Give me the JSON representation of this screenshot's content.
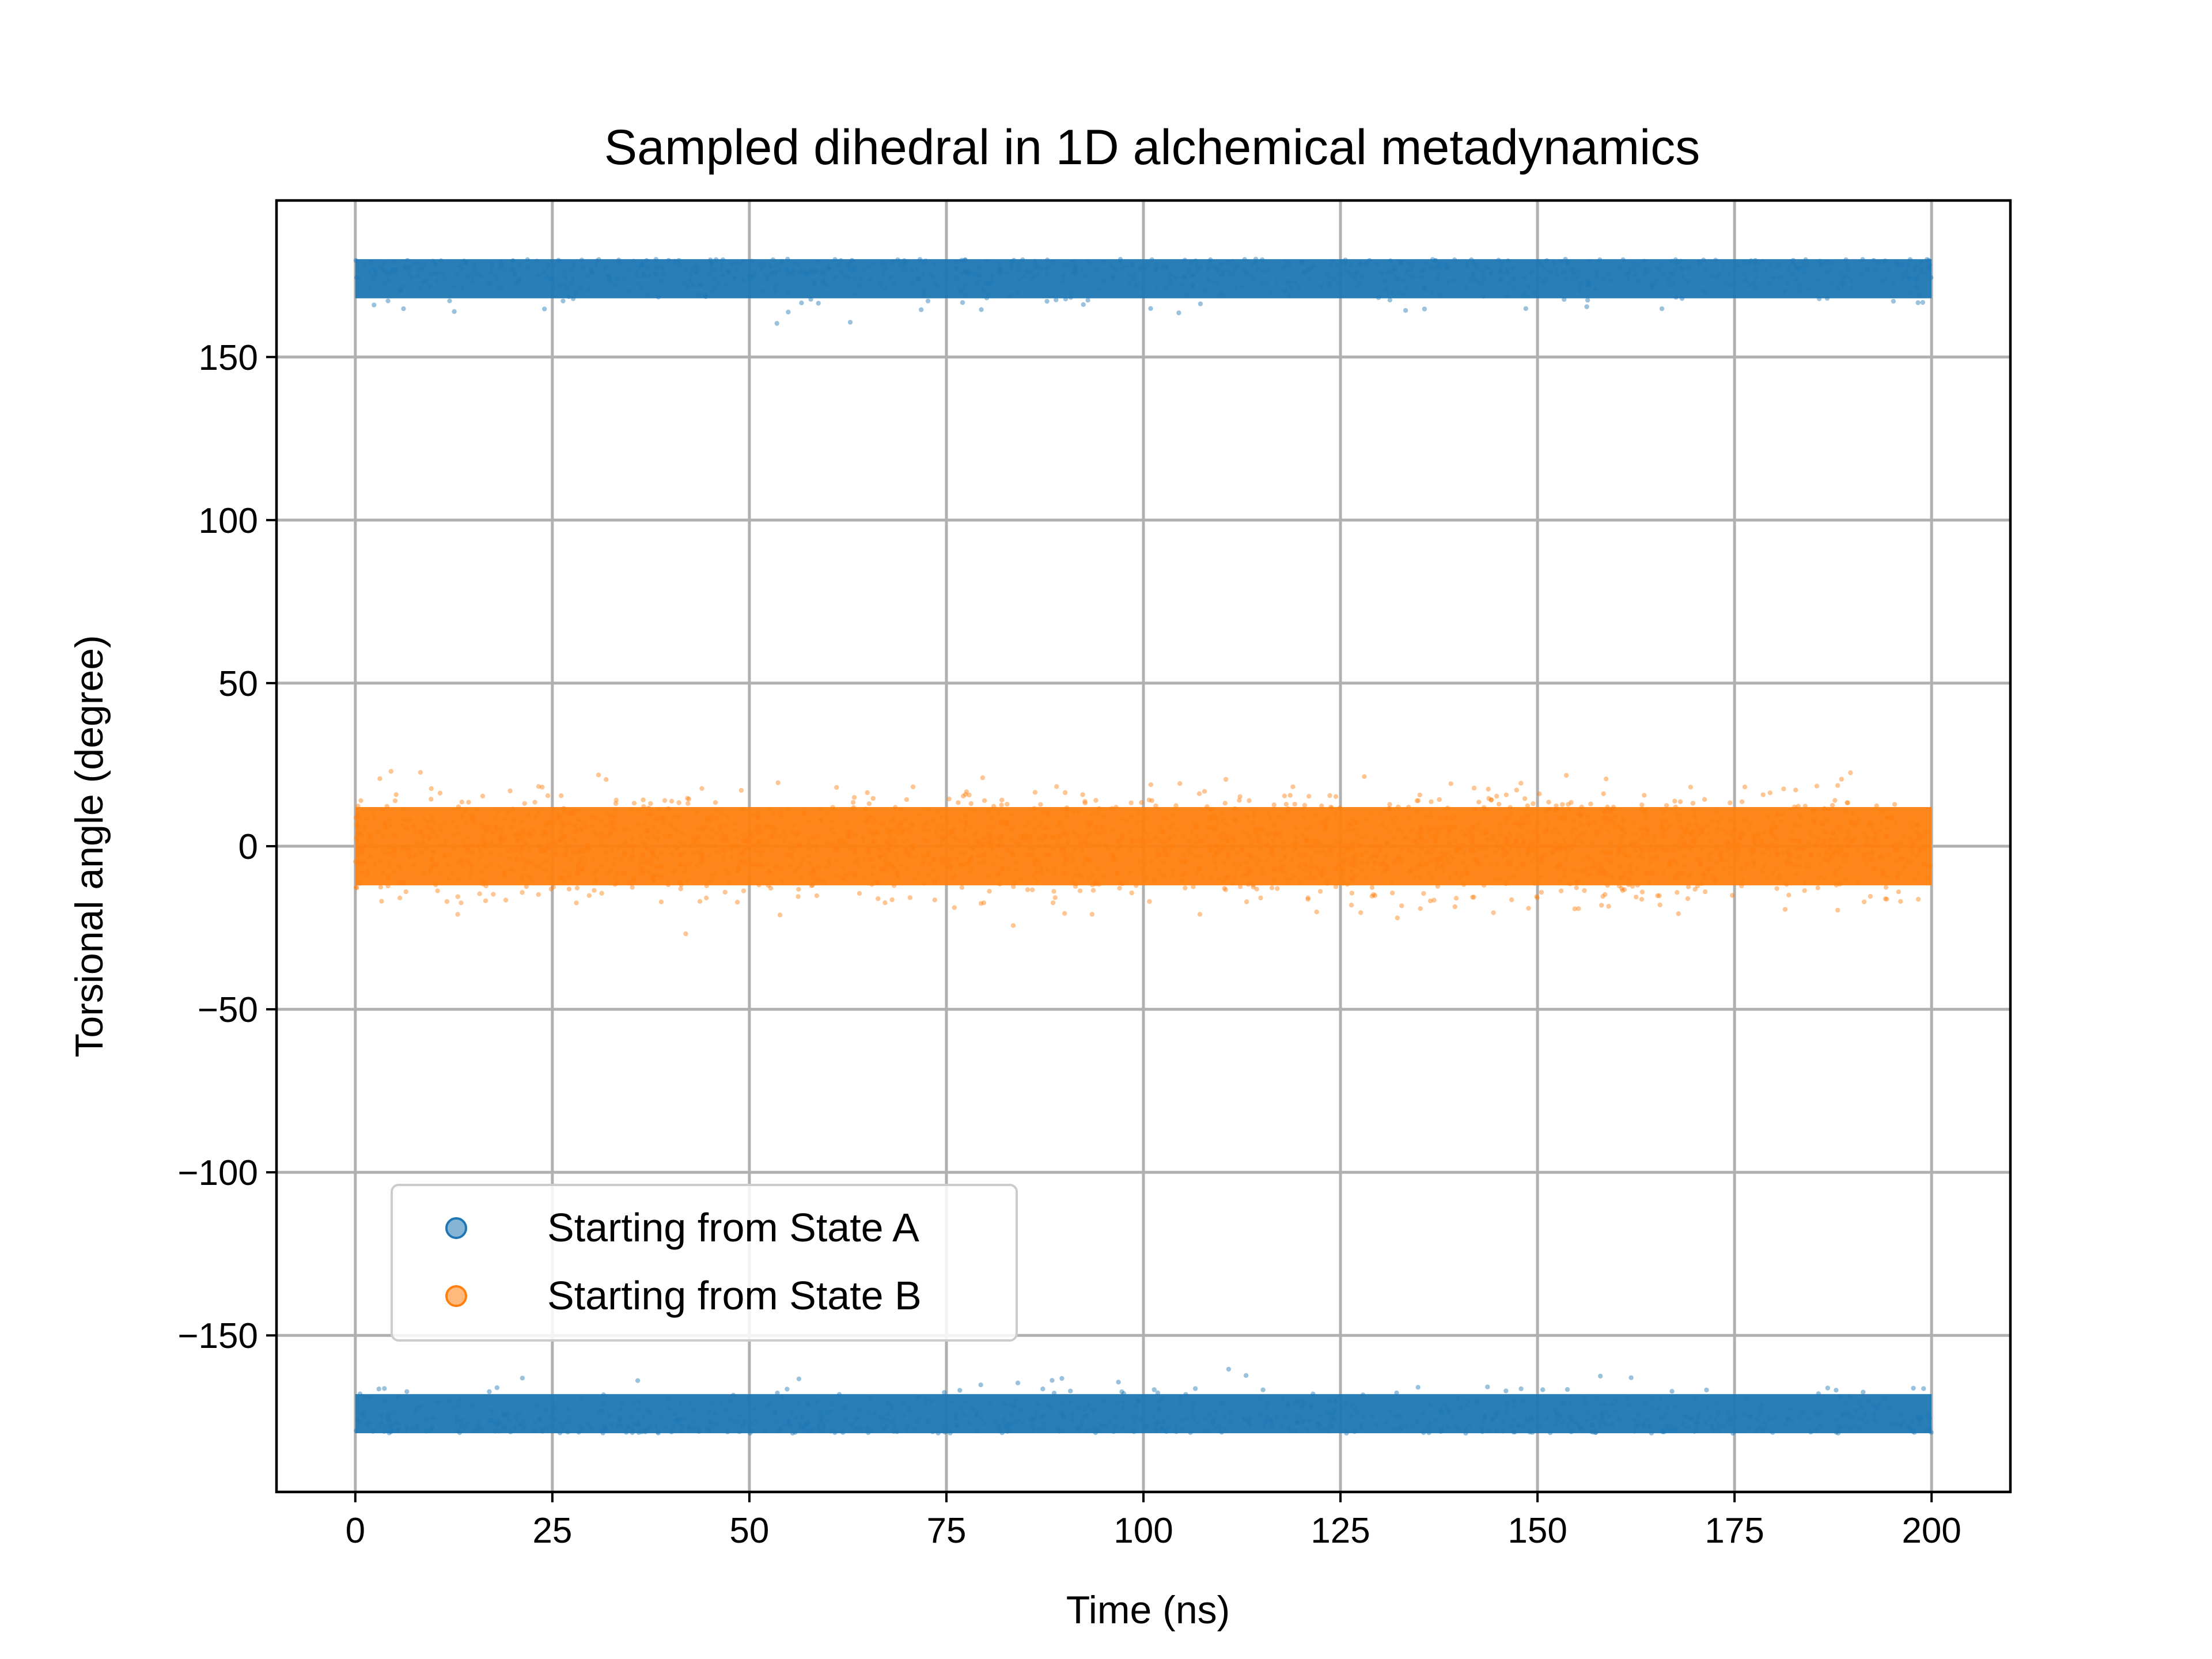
{
  "chart_data": {
    "type": "scatter",
    "title": "Sampled dihedral in 1D alchemical metadynamics",
    "xlabel": "Time (ns)",
    "ylabel": "Torsional angle (degree)",
    "xlim": [
      -10,
      210
    ],
    "ylim": [
      -198,
      198
    ],
    "xticks": [
      {
        "value": 0,
        "label": "0"
      },
      {
        "value": 25,
        "label": "25"
      },
      {
        "value": 50,
        "label": "50"
      },
      {
        "value": 75,
        "label": "75"
      },
      {
        "value": 100,
        "label": "100"
      },
      {
        "value": 125,
        "label": "125"
      },
      {
        "value": 150,
        "label": "150"
      },
      {
        "value": 175,
        "label": "175"
      },
      {
        "value": 200,
        "label": "200"
      }
    ],
    "yticks": [
      {
        "value": -150,
        "label": "−150"
      },
      {
        "value": -100,
        "label": "−100"
      },
      {
        "value": -50,
        "label": "−50"
      },
      {
        "value": 0,
        "label": "0"
      },
      {
        "value": 50,
        "label": "50"
      },
      {
        "value": 100,
        "label": "100"
      },
      {
        "value": 150,
        "label": "150"
      }
    ],
    "grid": true,
    "legend_position": "lower-left",
    "series": [
      {
        "name": "Starting from State A",
        "color": "#1f77b4",
        "x_range": [
          0,
          200
        ],
        "bands": [
          {
            "center": 174,
            "core_range": [
              168,
              180
            ],
            "scatter_min": 150
          },
          {
            "center": -174,
            "core_range": [
              -180,
              -168
            ],
            "scatter_max": -150
          }
        ]
      },
      {
        "name": "Starting from State B",
        "color": "#ff7f0e",
        "x_range": [
          0,
          200
        ],
        "bands": [
          {
            "center": 0,
            "core_range": [
              -12,
              12
            ],
            "scatter_min": -28,
            "scatter_max": 32
          }
        ]
      }
    ]
  }
}
